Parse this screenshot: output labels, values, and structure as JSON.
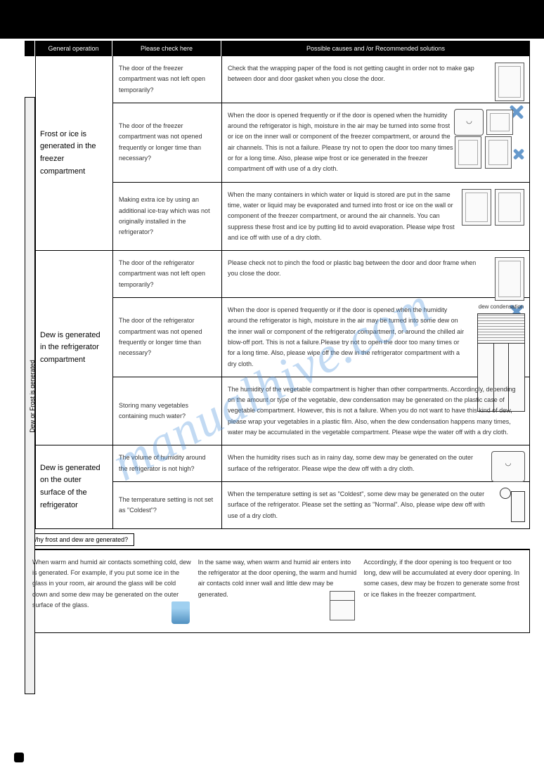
{
  "header": {
    "general": "General operation",
    "check": "Please check here",
    "solutions": "Possible causes and /or Recommended solutions"
  },
  "side_label": "Dew or Frost is generated",
  "sections": [
    {
      "general": "Frost or ice is generated in the freezer compartment",
      "rows": [
        {
          "check": "The door of the freezer compartment was not left open temporarily?",
          "solution": "Check that the wrapping paper of the food is not getting caught in order not to make gap between door and door gasket when you close the door.",
          "img_type": "fridge_x"
        },
        {
          "check": "The door of the freezer compartment was not opened frequently or longer time than necessary?",
          "solution": "When the door is opened frequently or if the door is opened when the humidity around the refrigerator is high, moisture in the air may be turned into some frost or ice on the inner wall or component of the freezer compartment, or around the air channels. This is not a failure. Please try not to open the door too many times or for a long time. Also, please wipe frost or ice generated in the freezer compartment off with use of a dry cloth.",
          "img_type": "multi_fridge"
        },
        {
          "check": "Making extra ice by using an additional ice-tray which was not originally installed in the refrigerator?",
          "solution": "When the many containers in which water or liquid is stored are put in the same time, water or liquid may be evaporated and turned into frost or ice on the wall or component of the freezer compartment, or around the air channels. You can suppress these frost and ice by putting lid to avoid evaporation. Please wipe frost and ice off with use of a dry cloth.",
          "img_type": "two_box"
        }
      ]
    },
    {
      "general": "Dew is generated in the refrigerator compartment",
      "rows": [
        {
          "check": "The door of the refrigerator compartment was not left open temporarily?",
          "solution": "Please check not to pinch the food or plastic bag between the door and door frame when you close the door.",
          "img_type": "fridge_x2"
        },
        {
          "check": "The door of the refrigerator compartment was not opened frequently or longer time than necessary?",
          "solution": "When the door is opened frequently or if the door is opened when the humidity around the refrigerator is high, moisture in the air may be turned into some dew on the inner wall or component of the refrigerator compartment, or around the chilled air blow-off port. This is not a failure.Please try not to open the door too many times or for a long time. Also, please wipe off the dew in the refrigerator compartment with a dry cloth.",
          "img_type": "big_fridge",
          "img_label": "dew condensation"
        },
        {
          "check": "Storing many vegetables containing much water?",
          "solution": "The humidity of the vegetable compartment is higher than other compartments. Accordingly, depending on the amount or type of the vegetable, dew condensation may be generated on the plastic case of vegetable compartment. However, this is not a failure. When you do not want to have this kind of dew, please wrap your vegetables in a plastic film. Also, when the dew condensation happens many times, water may be accumulated in the vegetable compartment. Please wipe the water off with a dry cloth.",
          "img_type": "none"
        }
      ]
    },
    {
      "general": "Dew is generated on the outer surface of the refrigerator",
      "rows": [
        {
          "check": "The volume of humidity around the refrigerator is not high?",
          "solution": "When the humidity rises such as in rainy day, some dew may be generated on the outer surface of the refrigerator. Please wipe the dew off with a dry cloth.",
          "img_type": "face"
        },
        {
          "check": "The temperature setting is not set as \"Coldest\"?",
          "solution": "When the temperature setting is set as \"Coldest\", some dew may be generated on the outer surface of the refrigerator. Please set the setting as \"Normal\". Also, please wipe dew off with use of a dry cloth.",
          "img_type": "person"
        }
      ]
    }
  ],
  "note_title": "Why frost and dew are generated?",
  "bottom": {
    "col1": "When warm and humid air contacts something cold, dew is generated. For example, if you put some ice in the glass in your room, air around the glass will be cold down and some dew may be generated on the outer surface of the glass.",
    "col2": "In the same way, when warm and humid air enters into the refrigerator at the door opening, the warm and humid air contacts cold inner wall and little dew may be generated.",
    "col3": "Accordingly, if the door opening is too frequent or too long, dew will be accumulated at every door opening. In some cases, dew may be frozen to generate some frost or ice flakes in the freezer compartment."
  },
  "watermark": "manualhive.com",
  "colors": {
    "header_bg": "#000000",
    "header_fg": "#ffffff",
    "x_color": "#6699cc",
    "watermark_color": "rgba(80,150,220,0.35)"
  }
}
